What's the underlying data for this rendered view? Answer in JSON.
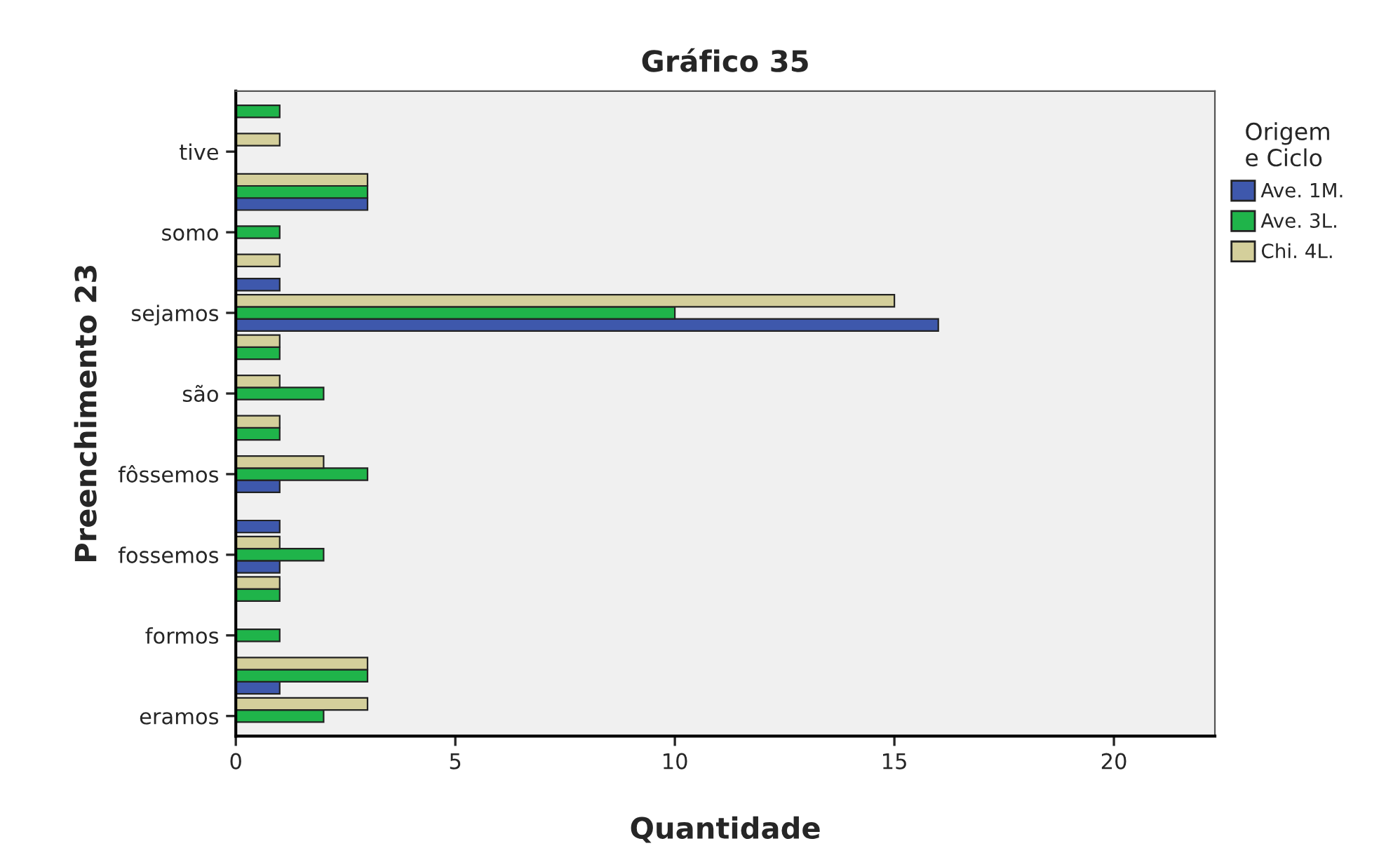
{
  "chart_data": {
    "type": "bar",
    "orientation": "horizontal",
    "title": "Gráfico 35",
    "xlabel": "Quantidade",
    "ylabel": "Preenchimento 23",
    "legend_title": "Origem\ne Ciclo",
    "legend": "right",
    "categories": [
      null,
      "tive",
      null,
      "somo",
      null,
      "sejamos",
      null,
      "são",
      null,
      "fôssemos",
      null,
      "fossemos",
      null,
      "formos",
      null,
      "eramos"
    ],
    "series": [
      {
        "name": "Ave. 1M.",
        "color": "#3e58ac",
        "values": [
          null,
          null,
          3,
          null,
          1,
          16,
          null,
          null,
          null,
          1,
          1,
          1,
          null,
          null,
          1,
          null
        ]
      },
      {
        "name": "Ave. 3L.",
        "color": "#1fb44a",
        "values": [
          1,
          null,
          3,
          1,
          null,
          10,
          1,
          2,
          1,
          3,
          null,
          2,
          1,
          1,
          3,
          2
        ]
      },
      {
        "name": "Chi. 4L.",
        "color": "#d4cf9b",
        "values": [
          null,
          1,
          3,
          null,
          1,
          15,
          1,
          1,
          1,
          2,
          null,
          1,
          1,
          null,
          3,
          3
        ]
      }
    ],
    "xlim": [
      0,
      22.3
    ],
    "xticks": [
      0,
      5,
      10,
      15,
      20
    ],
    "grid": false
  }
}
